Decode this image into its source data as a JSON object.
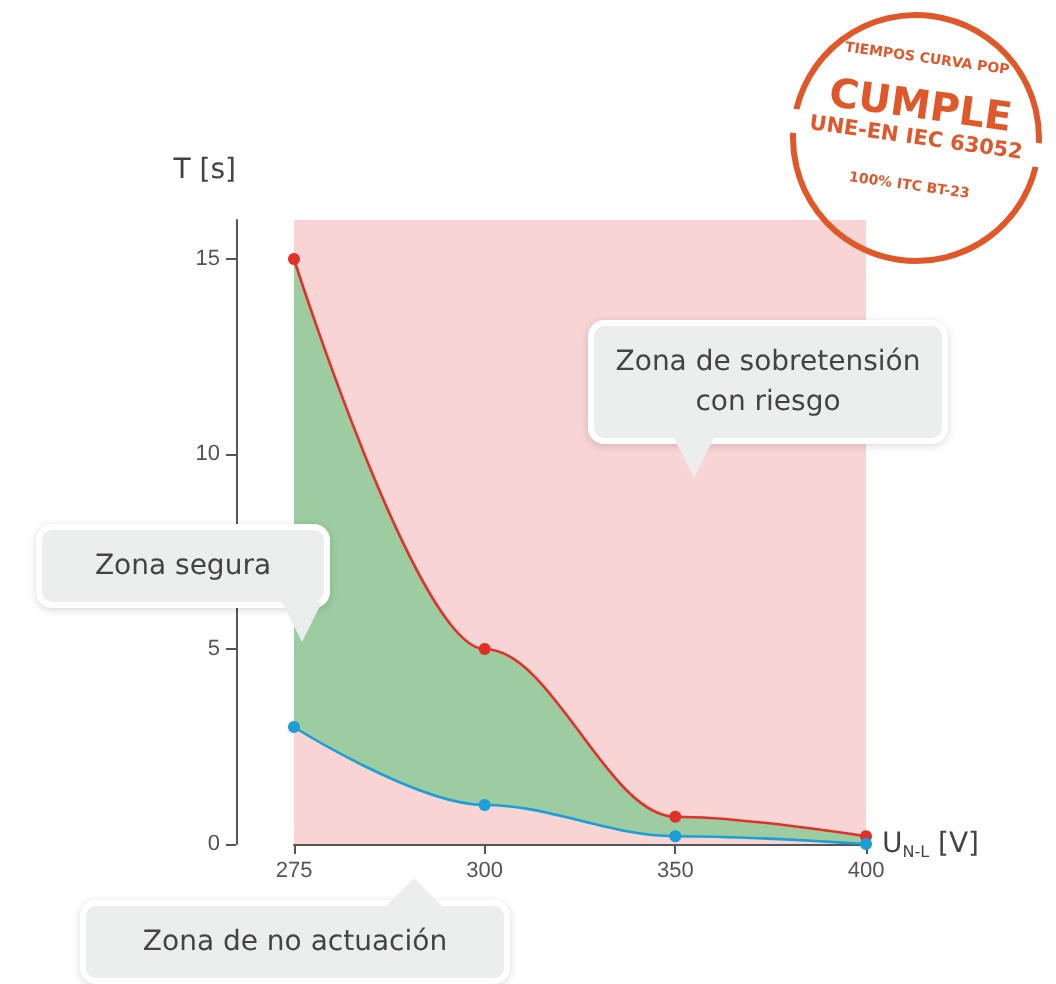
{
  "chart_data": {
    "type": "line",
    "xlabel": "U$_{N-L}$ [V]",
    "ylabel": "T [s]",
    "categories": [
      "275",
      "300",
      "350",
      "400"
    ],
    "series": [
      {
        "type": "area",
        "color": "#9ccc9f",
        "values": [
          15,
          5,
          0.7,
          0.2
        ],
        "marker": "none"
      },
      {
        "color": "#e0302a",
        "values": [
          15,
          5,
          0.7,
          0.2
        ]
      },
      {
        "color": "#1b9fd6",
        "values": [
          3,
          1,
          0.2,
          0
        ]
      }
    ],
    "ylim": [
      0,
      16
    ],
    "yticks": [
      0,
      5,
      10,
      15
    ],
    "bands": [
      {
        "axis": "x",
        "from": "275",
        "to": "400",
        "color": "#f8d4d4"
      }
    ],
    "annotations": [
      "Zona de sobretensión con riesgo",
      "Zona segura",
      "Zona de no actuación",
      "TIEMPOS CURVA POP",
      "CUMPLE",
      "UNE-EN IEC 63052",
      "100% ITC BT-23"
    ],
    "marker": "circle",
    "grid": false
  }
}
